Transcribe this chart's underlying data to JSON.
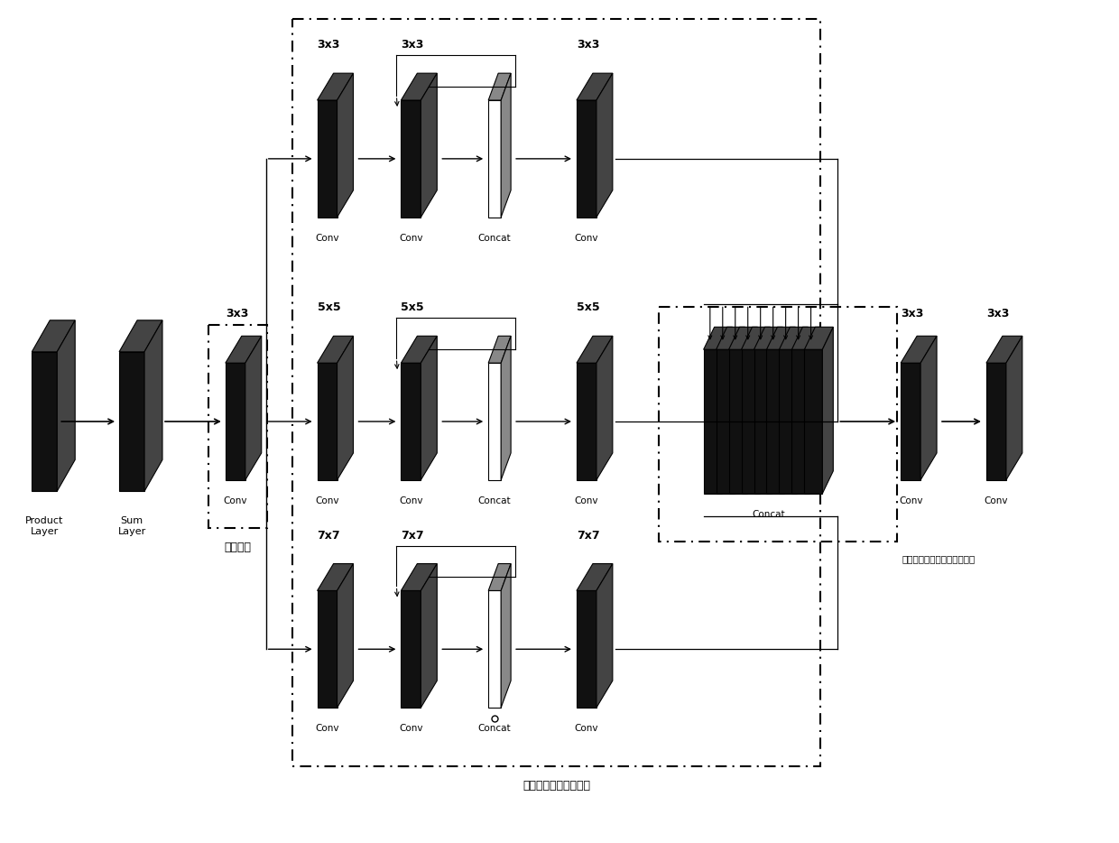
{
  "bg_color": "#ffffff",
  "label_init": "初始阶段",
  "label_multiscale": "多尺度卷积层计算阶段",
  "label_dense": "多尺度卷积特征混合计算阶段"
}
